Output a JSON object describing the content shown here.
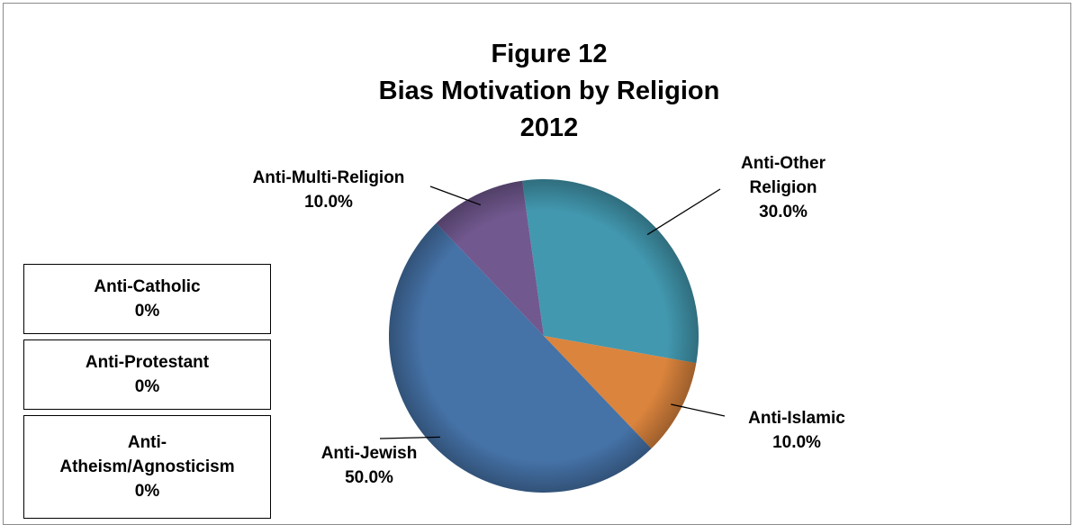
{
  "chart_data": {
    "type": "pie",
    "title": [
      "Figure 12",
      "Bias Motivation by Religion",
      "2012"
    ],
    "slices": [
      {
        "label": "Anti-Other Religion",
        "label_lines": [
          "Anti-Other",
          "Religion"
        ],
        "value": 30.0,
        "pct_text": "30.0%",
        "color": "#4298AF"
      },
      {
        "label": "Anti-Islamic",
        "label_lines": [
          "Anti-Islamic"
        ],
        "value": 10.0,
        "pct_text": "10.0%",
        "color": "#DB843D"
      },
      {
        "label": "Anti-Jewish",
        "label_lines": [
          "Anti-Jewish"
        ],
        "value": 50.0,
        "pct_text": "50.0%",
        "color": "#4572A7"
      },
      {
        "label": "Anti-Multi-Religion",
        "label_lines": [
          "Anti-Multi-Religion"
        ],
        "value": 10.0,
        "pct_text": "10.0%",
        "color": "#71588F"
      }
    ],
    "zero_categories": [
      {
        "label_lines": [
          "Anti-Catholic"
        ],
        "pct_text": "0%"
      },
      {
        "label_lines": [
          "Anti-Protestant"
        ],
        "pct_text": "0%"
      },
      {
        "label_lines": [
          "Anti-",
          "Atheism/Agnosticism"
        ],
        "pct_text": "0%"
      }
    ]
  }
}
